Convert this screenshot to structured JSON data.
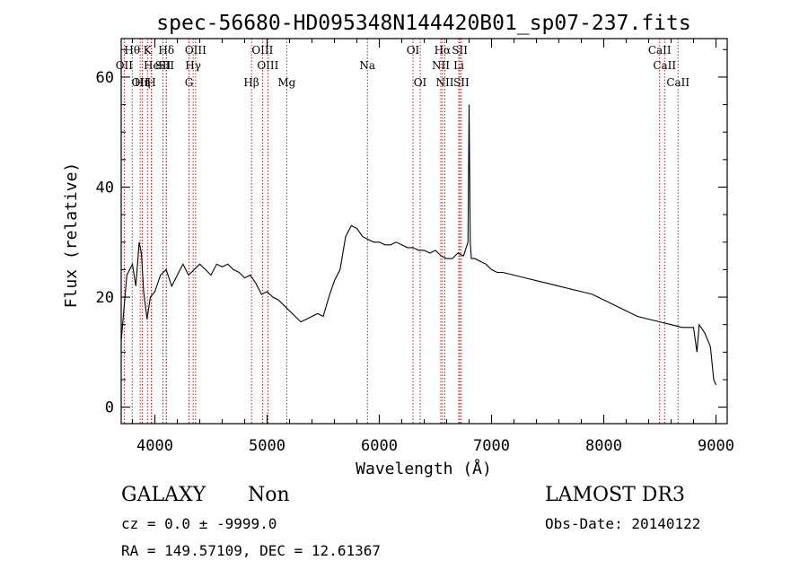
{
  "chart_data": {
    "type": "line",
    "title": "spec-56680-HD095348N144420B01_sp07-237.fits",
    "xlabel": "Wavelength (Å)",
    "ylabel": "Flux (relative)",
    "xlim": [
      3700,
      9100
    ],
    "ylim": [
      -3,
      67
    ],
    "x_ticks": [
      4000,
      5000,
      6000,
      7000,
      8000,
      9000
    ],
    "x_tick_labels": [
      "4000",
      "5000",
      "6000",
      "7000",
      "8000",
      "9000"
    ],
    "y_ticks": [
      0,
      20,
      40,
      60
    ],
    "y_tick_labels": [
      "0",
      "20",
      "40",
      "60"
    ],
    "grid": false,
    "series": [
      {
        "x": [
          3700,
          3750,
          3800,
          3830,
          3860,
          3880,
          3900,
          3930,
          3960,
          4000,
          4050,
          4100,
          4150,
          4200,
          4250,
          4300,
          4350,
          4400,
          4450,
          4500,
          4550,
          4600,
          4650,
          4700,
          4750,
          4800,
          4850,
          4900,
          4950,
          5000,
          5050,
          5100,
          5150,
          5200,
          5250,
          5300,
          5350,
          5400,
          5450,
          5500,
          5550,
          5600,
          5650,
          5700,
          5750,
          5800,
          5850,
          5900,
          5950,
          6000,
          6050,
          6100,
          6150,
          6200,
          6250,
          6300,
          6350,
          6400,
          6450,
          6500,
          6550,
          6600,
          6650,
          6700,
          6750,
          6790,
          6800,
          6810,
          6820,
          6850,
          6900,
          6950,
          7000,
          7050,
          7100,
          7200,
          7300,
          7400,
          7500,
          7600,
          7700,
          7800,
          7900,
          8000,
          8100,
          8200,
          8300,
          8400,
          8500,
          8600,
          8700,
          8800,
          8830,
          8850,
          8900,
          8950,
          8980,
          9000
        ],
        "y": [
          12,
          24,
          26,
          22,
          30,
          28,
          21,
          16,
          20,
          21,
          24,
          25,
          22,
          24,
          26,
          24,
          25,
          26,
          25,
          24,
          26,
          25.5,
          26,
          25,
          24.5,
          23.5,
          24,
          22.5,
          20.5,
          21,
          20,
          19.5,
          18.5,
          17.5,
          16.5,
          15.5,
          16,
          16.5,
          17,
          16.5,
          20,
          23,
          25,
          31,
          33,
          32.5,
          31,
          30.5,
          30,
          30,
          29.5,
          29.5,
          30,
          29.5,
          29,
          29,
          28.5,
          28.5,
          28,
          28.5,
          27.5,
          27,
          27,
          28,
          27.5,
          30,
          55,
          30,
          27,
          27,
          26.5,
          26,
          25,
          24.5,
          24.5,
          24,
          23.5,
          23,
          22.5,
          22,
          21.5,
          21,
          20.5,
          19.5,
          18.5,
          17.5,
          16.5,
          16,
          15.5,
          15,
          14.5,
          14.5,
          10,
          15,
          13.5,
          11,
          5,
          4
        ]
      }
    ],
    "line_marker_color": "#c00000",
    "line_labels": [
      {
        "name": "OII",
        "wavelength": 3727,
        "row": 1
      },
      {
        "name": "Hθ",
        "wavelength": 3798,
        "row": 0
      },
      {
        "name": "OII",
        "wavelength": 3869,
        "row": 2
      },
      {
        "name": "Hη",
        "wavelength": 3889,
        "row": 2
      },
      {
        "name": "He",
        "wavelength": 3970,
        "row": 1
      },
      {
        "name": "K",
        "wavelength": 3934,
        "row": 0
      },
      {
        "name": "H",
        "wavelength": 3969,
        "row": 2
      },
      {
        "name": "SII",
        "wavelength": 4072,
        "row": 1
      },
      {
        "name": "Hδ",
        "wavelength": 4102,
        "row": 0
      },
      {
        "name": "SII",
        "wavelength": 4102,
        "row": 1
      },
      {
        "name": "OIII",
        "wavelength": 4363,
        "row": 0
      },
      {
        "name": "Hγ",
        "wavelength": 4341,
        "row": 1
      },
      {
        "name": "G",
        "wavelength": 4304,
        "row": 2
      },
      {
        "name": "Hβ",
        "wavelength": 4861,
        "row": 2
      },
      {
        "name": "OIII",
        "wavelength": 4959,
        "row": 0
      },
      {
        "name": "OIII",
        "wavelength": 5007,
        "row": 1
      },
      {
        "name": "Mg",
        "wavelength": 5175,
        "row": 2
      },
      {
        "name": "Na",
        "wavelength": 5894,
        "row": 1
      },
      {
        "name": "OI",
        "wavelength": 6300,
        "row": 0
      },
      {
        "name": "OI",
        "wavelength": 6364,
        "row": 2
      },
      {
        "name": "Hα",
        "wavelength": 6563,
        "row": 0
      },
      {
        "name": "NII",
        "wavelength": 6548,
        "row": 1
      },
      {
        "name": "NII",
        "wavelength": 6584,
        "row": 2
      },
      {
        "name": "SII",
        "wavelength": 6717,
        "row": 0
      },
      {
        "name": "Li",
        "wavelength": 6708,
        "row": 1
      },
      {
        "name": "SII",
        "wavelength": 6731,
        "row": 2
      },
      {
        "name": "CaII",
        "wavelength": 8498,
        "row": 0
      },
      {
        "name": "CaII",
        "wavelength": 8542,
        "row": 1
      },
      {
        "name": "CaII",
        "wavelength": 8662,
        "row": 2
      }
    ]
  },
  "info": {
    "class": "GALAXY",
    "subclass": "Non",
    "survey": "LAMOST DR3",
    "cz": "cz = 0.0 ± -9999.0",
    "obs_date": "Obs-Date: 20140122",
    "radec": "RA = 149.57109, DEC =  12.61367"
  }
}
